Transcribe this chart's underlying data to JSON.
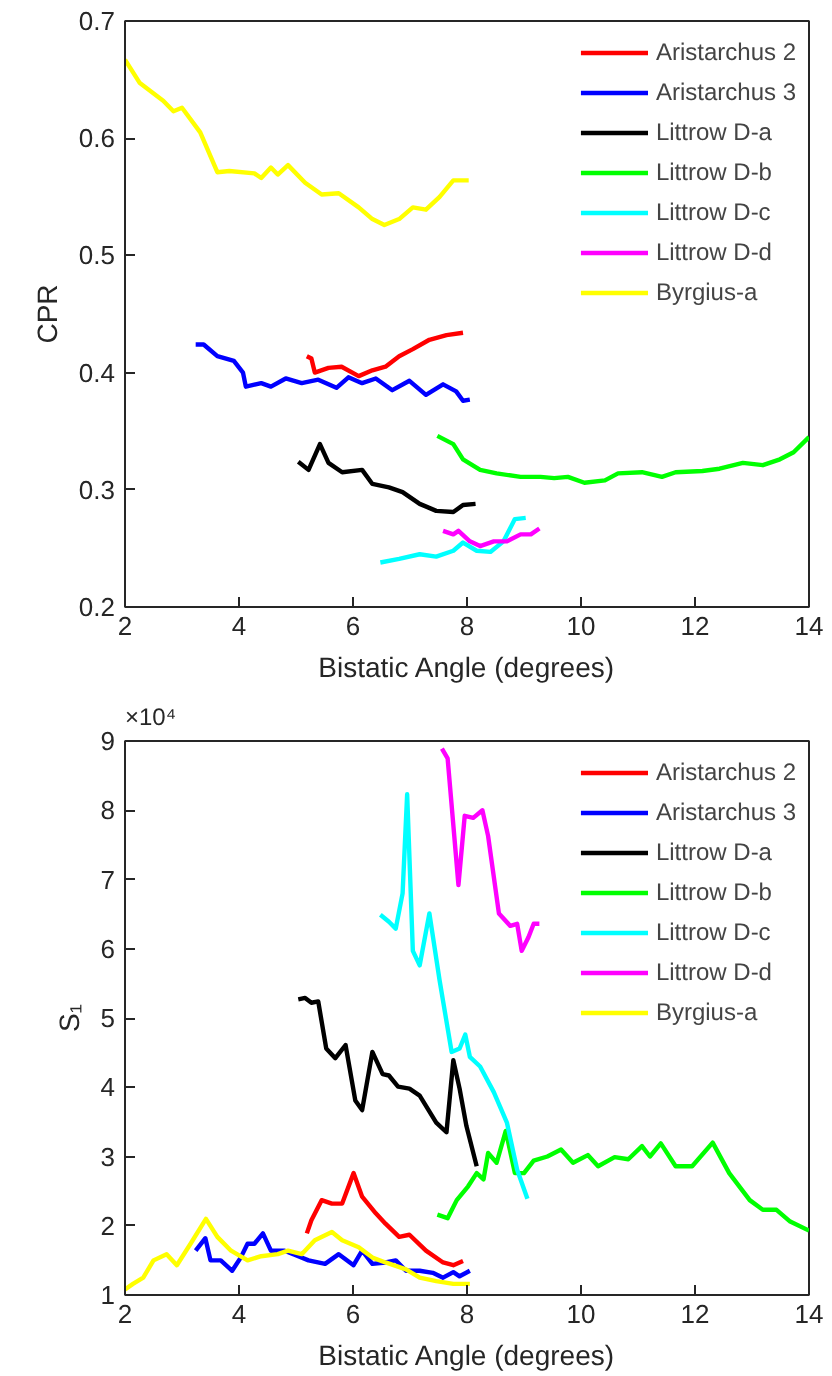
{
  "chart_data": [
    {
      "type": "line",
      "xlabel": "Bistatic Angle (degrees)",
      "ylabel": "CPR",
      "xlim": [
        2,
        14
      ],
      "xticks": [
        2,
        4,
        6,
        8,
        10,
        12,
        14
      ],
      "ylim": [
        0.2,
        0.7
      ],
      "yticks": [
        0.2,
        0.3,
        0.4,
        0.5,
        0.6,
        0.7
      ],
      "grid": false,
      "legend": "top right",
      "line_style": "solid",
      "series": [
        {
          "name": "Aristarchus 2",
          "color": "#ff0000",
          "x": [
            5.19,
            5.27,
            5.33,
            5.57,
            5.8,
            6.1,
            6.34,
            6.57,
            6.81,
            7.05,
            7.34,
            7.64,
            7.93
          ],
          "values": [
            0.414,
            0.412,
            0.4,
            0.404,
            0.405,
            0.397,
            0.402,
            0.405,
            0.414,
            0.42,
            0.428,
            0.432,
            0.434
          ]
        },
        {
          "name": "Aristarchus 3",
          "color": "#0000ff",
          "x": [
            3.24,
            3.38,
            3.62,
            3.91,
            4.07,
            4.12,
            4.39,
            4.56,
            4.82,
            5.1,
            5.39,
            5.71,
            5.92,
            6.16,
            6.4,
            6.69,
            6.99,
            7.28,
            7.58,
            7.81,
            7.93,
            8.05
          ],
          "values": [
            0.424,
            0.424,
            0.414,
            0.41,
            0.4,
            0.388,
            0.391,
            0.388,
            0.395,
            0.391,
            0.394,
            0.387,
            0.396,
            0.391,
            0.395,
            0.385,
            0.393,
            0.381,
            0.39,
            0.384,
            0.376,
            0.377
          ]
        },
        {
          "name": "Littrow D-a",
          "color": "#000000",
          "x": [
            5.04,
            5.22,
            5.42,
            5.57,
            5.81,
            6.16,
            6.34,
            6.63,
            6.87,
            7.17,
            7.46,
            7.76,
            7.93,
            8.15
          ],
          "values": [
            0.324,
            0.317,
            0.339,
            0.323,
            0.315,
            0.317,
            0.305,
            0.302,
            0.298,
            0.288,
            0.282,
            0.281,
            0.287,
            0.288
          ]
        },
        {
          "name": "Littrow D-b",
          "color": "#00ff00",
          "x": [
            7.48,
            7.76,
            7.93,
            8.23,
            8.52,
            8.94,
            9.29,
            9.53,
            9.77,
            10.06,
            10.42,
            10.65,
            11.07,
            11.42,
            11.66,
            12.13,
            12.43,
            12.84,
            13.19,
            13.49,
            13.73,
            14.0
          ],
          "values": [
            0.346,
            0.339,
            0.326,
            0.317,
            0.314,
            0.311,
            0.311,
            0.31,
            0.311,
            0.306,
            0.308,
            0.314,
            0.315,
            0.311,
            0.315,
            0.316,
            0.318,
            0.323,
            0.321,
            0.326,
            0.332,
            0.345
          ]
        },
        {
          "name": "Littrow D-c",
          "color": "#00ffff",
          "x": [
            6.48,
            6.81,
            7.17,
            7.46,
            7.76,
            7.93,
            8.17,
            8.41,
            8.64,
            8.84,
            9.03
          ],
          "values": [
            0.238,
            0.241,
            0.245,
            0.243,
            0.248,
            0.255,
            0.248,
            0.247,
            0.256,
            0.275,
            0.276
          ]
        },
        {
          "name": "Littrow D-d",
          "color": "#ff00ff",
          "x": [
            7.58,
            7.76,
            7.85,
            8.05,
            8.23,
            8.47,
            8.7,
            8.94,
            9.12,
            9.27
          ],
          "values": [
            0.265,
            0.262,
            0.265,
            0.256,
            0.252,
            0.256,
            0.256,
            0.262,
            0.262,
            0.267
          ]
        },
        {
          "name": "Byrgius-a",
          "color": "#ffff00",
          "x": [
            2.0,
            2.26,
            2.67,
            2.85,
            3.0,
            3.32,
            3.62,
            3.83,
            4.27,
            4.39,
            4.56,
            4.68,
            4.86,
            5.16,
            5.45,
            5.75,
            6.1,
            6.34,
            6.55,
            6.81,
            7.05,
            7.28,
            7.52,
            7.76,
            8.03
          ],
          "values": [
            0.667,
            0.647,
            0.632,
            0.623,
            0.626,
            0.605,
            0.571,
            0.572,
            0.57,
            0.566,
            0.575,
            0.569,
            0.577,
            0.562,
            0.552,
            0.553,
            0.541,
            0.531,
            0.526,
            0.531,
            0.541,
            0.539,
            0.55,
            0.564,
            0.564
          ]
        }
      ]
    },
    {
      "type": "line",
      "xlabel": "Bistatic Angle (degrees)",
      "ylabel": "S₁",
      "annotations": [
        "×10⁴"
      ],
      "xlim": [
        2,
        14
      ],
      "xticks": [
        2,
        4,
        6,
        8,
        10,
        12,
        14
      ],
      "ylim": [
        1,
        9
      ],
      "yticks": [
        1,
        2,
        3,
        4,
        5,
        6,
        7,
        8,
        9
      ],
      "grid": false,
      "legend": "top right",
      "line_style": "solid",
      "series": [
        {
          "name": "Aristarchus 2",
          "color": "#ff0000",
          "x": [
            5.19,
            5.27,
            5.45,
            5.63,
            5.81,
            6.01,
            6.16,
            6.4,
            6.57,
            6.81,
            6.99,
            7.28,
            7.58,
            7.76,
            7.93
          ],
          "values": [
            1.89,
            2.08,
            2.37,
            2.32,
            2.32,
            2.76,
            2.42,
            2.18,
            2.03,
            1.84,
            1.87,
            1.64,
            1.47,
            1.43,
            1.49
          ]
        },
        {
          "name": "Aristarchus 3",
          "color": "#0000ff",
          "x": [
            3.24,
            3.41,
            3.5,
            3.68,
            3.88,
            4.03,
            4.15,
            4.27,
            4.42,
            4.56,
            4.8,
            5.04,
            5.22,
            5.51,
            5.75,
            6.01,
            6.16,
            6.34,
            6.57,
            6.75,
            6.93,
            7.17,
            7.4,
            7.58,
            7.76,
            7.87,
            8.05
          ],
          "values": [
            1.64,
            1.82,
            1.5,
            1.5,
            1.35,
            1.54,
            1.74,
            1.74,
            1.89,
            1.64,
            1.64,
            1.56,
            1.5,
            1.45,
            1.59,
            1.43,
            1.64,
            1.45,
            1.47,
            1.5,
            1.35,
            1.35,
            1.32,
            1.25,
            1.33,
            1.27,
            1.35
          ]
        },
        {
          "name": "Littrow D-a",
          "color": "#000000",
          "x": [
            5.04,
            5.16,
            5.27,
            5.39,
            5.53,
            5.69,
            5.87,
            6.04,
            6.16,
            6.34,
            6.52,
            6.63,
            6.79,
            6.99,
            7.17,
            7.46,
            7.64,
            7.76,
            7.87,
            7.99,
            8.17
          ],
          "values": [
            5.27,
            5.29,
            5.22,
            5.24,
            4.56,
            4.42,
            4.61,
            3.81,
            3.67,
            4.51,
            4.19,
            4.17,
            4.01,
            3.98,
            3.88,
            3.49,
            3.35,
            4.39,
            3.98,
            3.44,
            2.86
          ]
        },
        {
          "name": "Littrow D-b",
          "color": "#00ff00",
          "x": [
            7.48,
            7.66,
            7.82,
            8.02,
            8.17,
            8.29,
            8.37,
            8.52,
            8.68,
            8.84,
            9.0,
            9.17,
            9.41,
            9.65,
            9.86,
            10.12,
            10.3,
            10.59,
            10.83,
            11.07,
            11.21,
            11.4,
            11.66,
            11.95,
            12.31,
            12.6,
            12.96,
            13.19,
            13.43,
            13.67,
            14.0
          ],
          "values": [
            2.16,
            2.11,
            2.37,
            2.57,
            2.76,
            2.67,
            3.05,
            2.91,
            3.37,
            2.76,
            2.76,
            2.94,
            3.0,
            3.1,
            2.91,
            3.02,
            2.86,
            2.99,
            2.96,
            3.15,
            3.0,
            3.19,
            2.86,
            2.86,
            3.2,
            2.76,
            2.37,
            2.23,
            2.23,
            2.06,
            1.93
          ]
        },
        {
          "name": "Littrow D-c",
          "color": "#00ffff",
          "x": [
            6.48,
            6.63,
            6.75,
            6.87,
            6.95,
            7.05,
            7.17,
            7.34,
            7.52,
            7.73,
            7.87,
            7.97,
            8.05,
            8.23,
            8.47,
            8.7,
            8.88,
            9.06
          ],
          "values": [
            6.49,
            6.39,
            6.29,
            6.8,
            8.23,
            5.97,
            5.76,
            6.51,
            5.54,
            4.51,
            4.56,
            4.76,
            4.44,
            4.3,
            3.93,
            3.49,
            2.81,
            2.39
          ]
        },
        {
          "name": "Littrow D-d",
          "color": "#ff00ff",
          "x": [
            7.56,
            7.66,
            7.85,
            7.96,
            8.11,
            8.27,
            8.37,
            8.56,
            8.76,
            8.88,
            8.96,
            9.08,
            9.17,
            9.27
          ],
          "values": [
            8.89,
            8.75,
            6.92,
            7.92,
            7.89,
            8.0,
            7.63,
            6.51,
            6.33,
            6.36,
            5.97,
            6.17,
            6.36,
            6.36
          ]
        },
        {
          "name": "Byrgius-a",
          "color": "#ffff00",
          "x": [
            2.0,
            2.14,
            2.32,
            2.5,
            2.73,
            2.91,
            3.15,
            3.42,
            3.62,
            3.86,
            4.15,
            4.39,
            4.68,
            4.86,
            5.1,
            5.33,
            5.63,
            5.81,
            6.1,
            6.34,
            6.57,
            6.93,
            7.17,
            7.46,
            7.76,
            8.05
          ],
          "values": [
            1.08,
            1.16,
            1.25,
            1.5,
            1.59,
            1.43,
            1.74,
            2.1,
            1.84,
            1.64,
            1.5,
            1.56,
            1.59,
            1.64,
            1.59,
            1.79,
            1.91,
            1.79,
            1.69,
            1.54,
            1.47,
            1.37,
            1.25,
            1.2,
            1.16,
            1.16
          ]
        }
      ]
    }
  ]
}
